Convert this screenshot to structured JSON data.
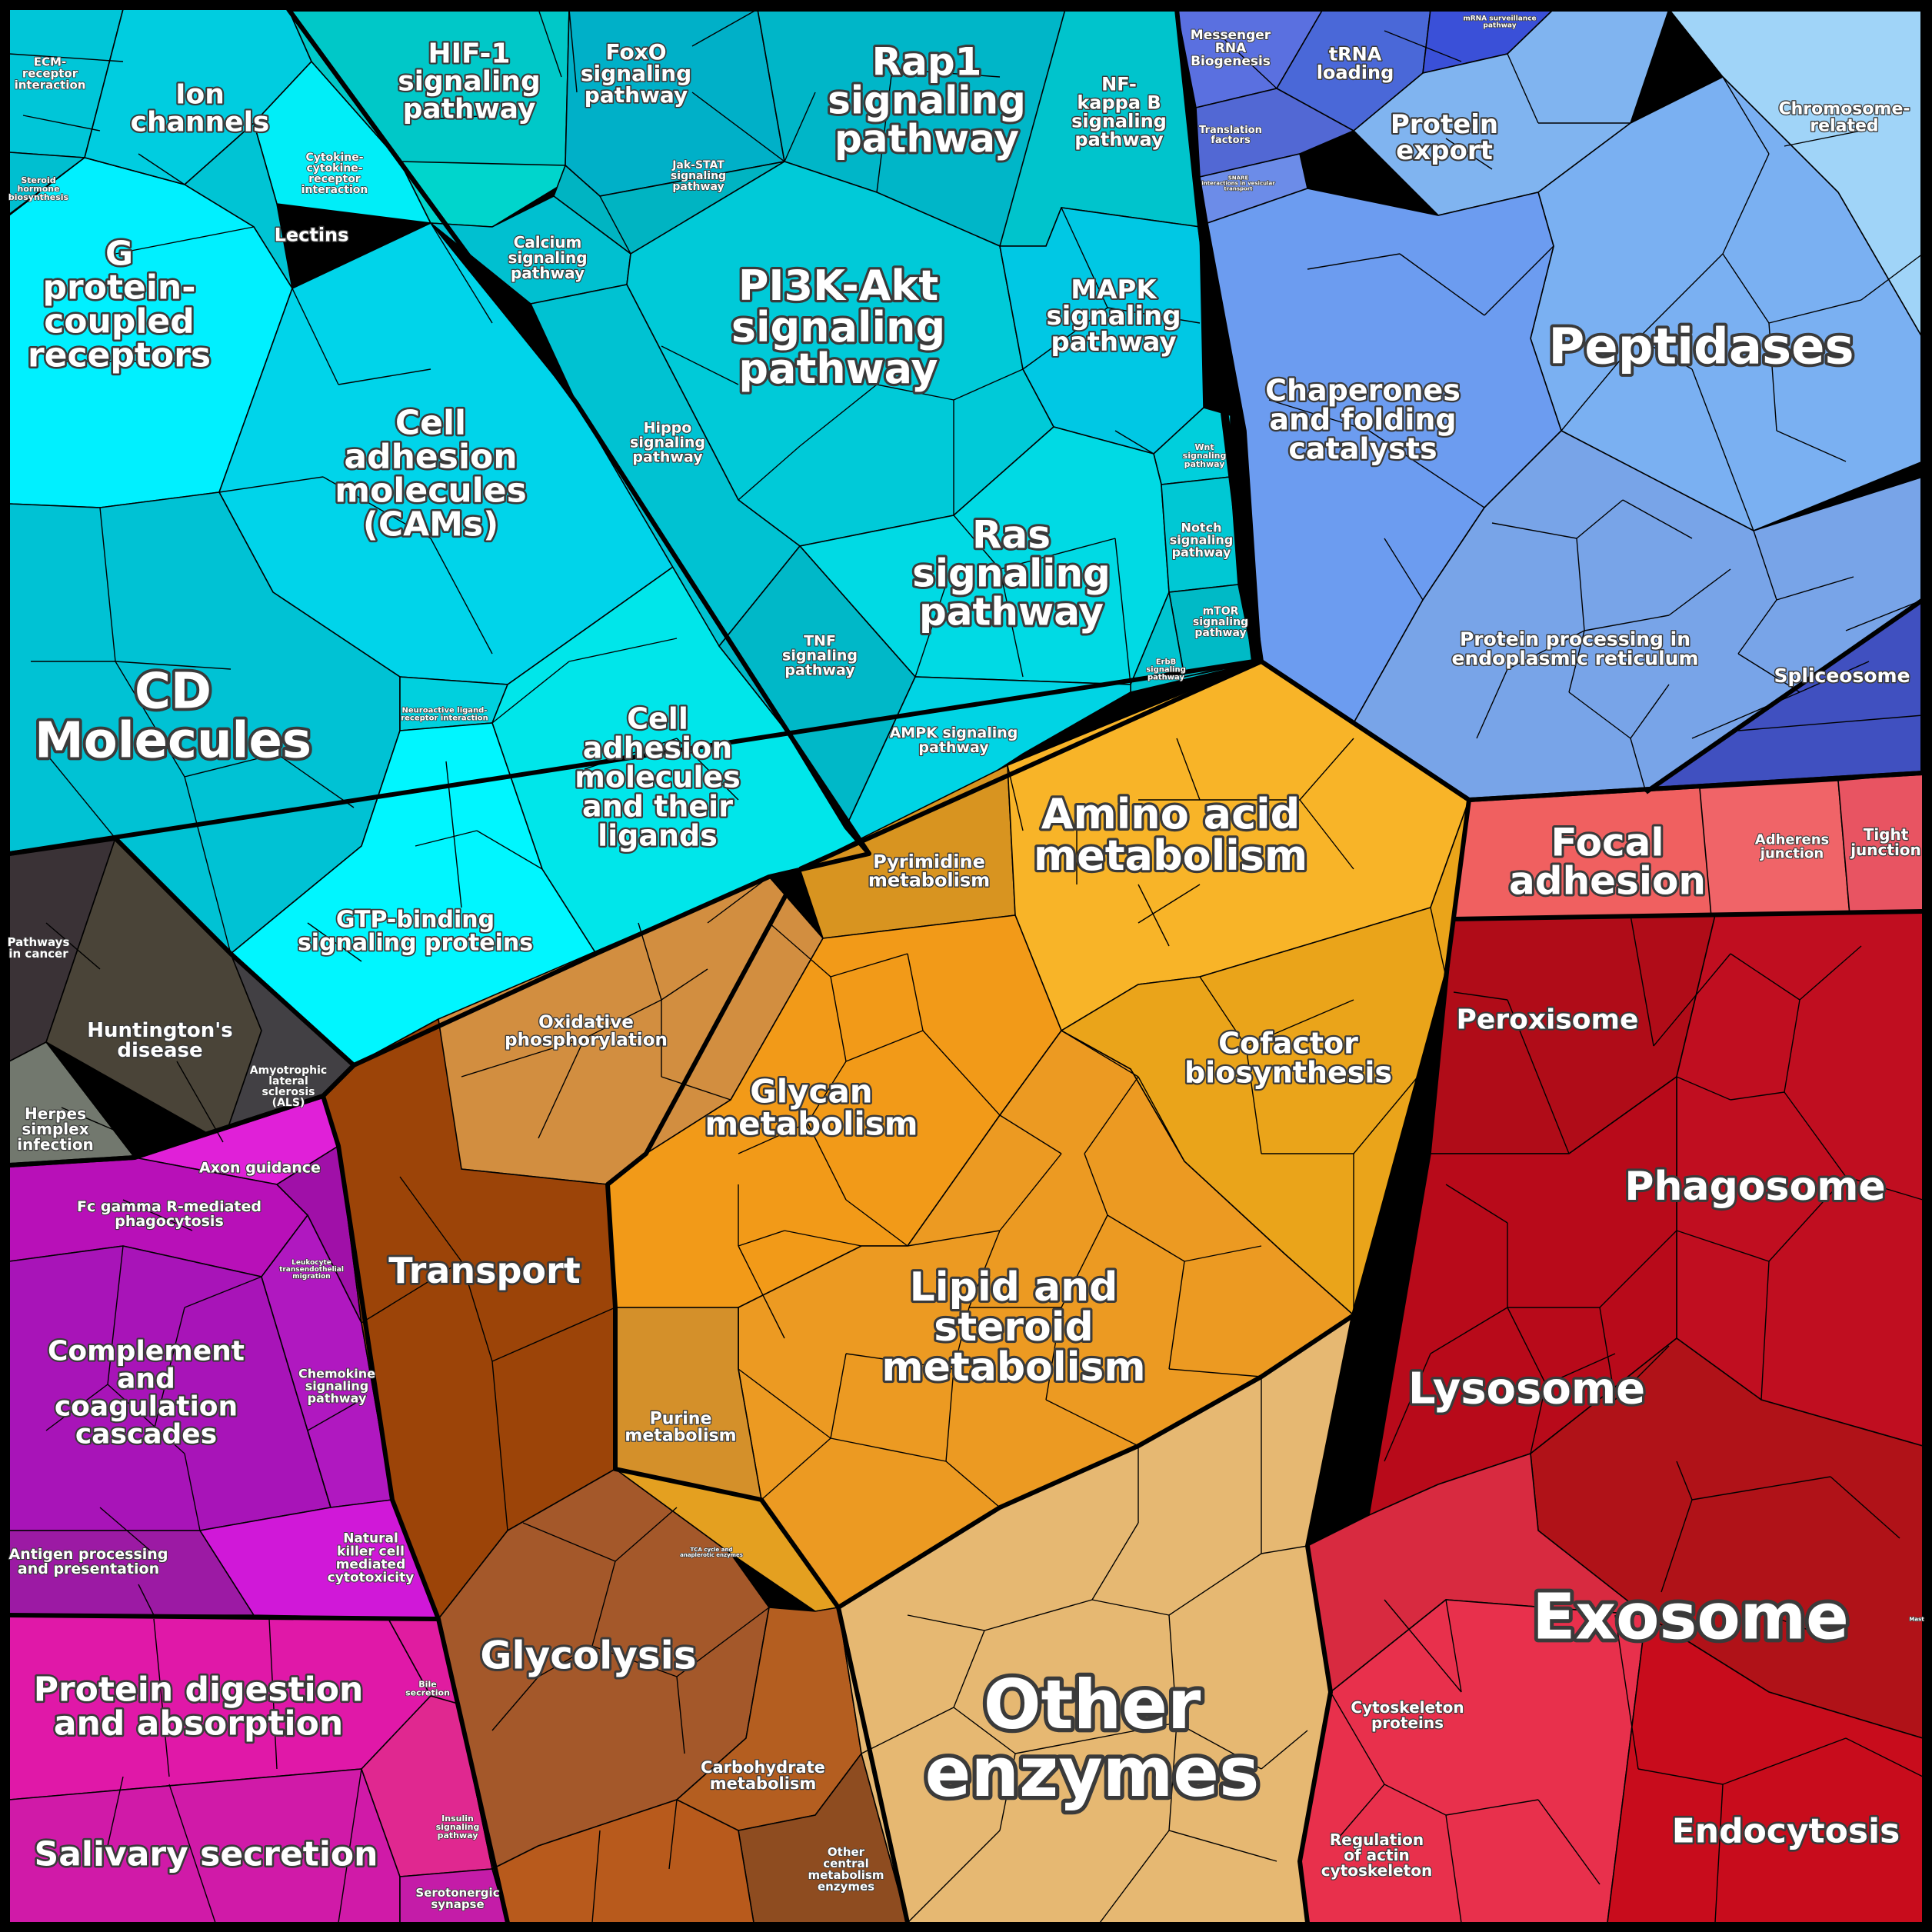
{
  "diagram": {
    "regions": [
      {
        "id": "cyan",
        "name": "cyan-region",
        "color": "#00d8e8"
      },
      {
        "id": "blue",
        "name": "blue-region",
        "color": "#70a8f0"
      },
      {
        "id": "gray",
        "name": "gray-region",
        "color": "#4a4a4a"
      },
      {
        "id": "orange",
        "name": "orange-region",
        "color": "#f0a020"
      },
      {
        "id": "red",
        "name": "red-region",
        "color": "#c01020"
      },
      {
        "id": "magenta",
        "name": "magenta-region",
        "color": "#c010c0"
      },
      {
        "id": "brown",
        "name": "brown-region",
        "color": "#a0582a"
      },
      {
        "id": "tan",
        "name": "tan-region",
        "color": "#e8b870"
      }
    ],
    "labels": {
      "ecm": "ECM-receptor interaction",
      "ion": "Ion channels",
      "steroid_horm": "Steroid hormone biosynthesis",
      "cytokine": "Cytokine-cytokine receptor interaction",
      "lectins": "Lectins",
      "gpcr": "G protein-coupled receptors",
      "cams": "Cell adhesion molecules (CAMs)",
      "cd": "CD Molecules",
      "neuro": "Neuroactive ligand-receptor interaction",
      "cam_lig": "Cell adhesion molecules and their ligands",
      "gtp": "GTP-binding signaling proteins",
      "hif": "HIF-1 signaling pathway",
      "foxo": "FoxO signaling pathway",
      "rap1": "Rap1 signaling pathway",
      "nfkb": "NF-kappa B signaling pathway",
      "jak": "Jak-STAT signaling pathway",
      "calcium": "Calcium signaling pathway",
      "pi3k": "PI3K-Akt signaling pathway",
      "mapk": "MAPK signaling pathway",
      "hippo": "Hippo signaling pathway",
      "wnt": "Wnt signaling pathway",
      "ras": "Ras signaling pathway",
      "notch": "Notch signaling pathway",
      "mtor": "mTOR signaling pathway",
      "erbb": "ErbB signaling pathway",
      "tnf": "TNF signaling pathway",
      "ampk": "AMPK signaling pathway",
      "mrna": "Messenger RNA Biogenesis",
      "trna": "tRNA loading",
      "mrna_surv": "mRNA surveillance pathway",
      "transl": "Translation factors",
      "snare": "SNARE interactions in vesicular transport",
      "prot_export": "Protein export",
      "chromosome": "Chromosome-related",
      "peptidases": "Peptidases",
      "chaperones": "Chaperones and folding catalysts",
      "er": "Protein processing in endoplasmic reticulum",
      "spliceosome": "Spliceosome",
      "pathways_cancer": "Pathways in cancer",
      "huntington": "Huntington's disease",
      "herpes": "Herpes simplex infection",
      "als": "Amyotrophic lateral sclerosis (ALS)",
      "pyrimidine": "Pyrimidine metabolism",
      "amino": "Amino acid metabolism",
      "oxphos": "Oxidative phosphorylation",
      "glycan": "Glycan metabolism",
      "cofactor": "Cofactor biosynthesis",
      "lipid": "Lipid and steroid metabolism",
      "purine": "Purine metabolism",
      "tca": "TCA cycle and anaplerotic enzymes",
      "transport": "Transport",
      "glycolysis": "Glycolysis",
      "carb": "Carbohydrate metabolism",
      "other_central": "Other central metabolism enzymes",
      "other_enz": "Other enzymes",
      "focal": "Focal adhesion",
      "adherens": "Adherens junction",
      "tight": "Tight junction",
      "peroxisome": "Peroxisome",
      "phagosome": "Phagosome",
      "lysosome": "Lysosome",
      "exosome": "Exosome",
      "cytoskeleton": "Cytoskeleton proteins",
      "reg_actin": "Regulation of actin cytoskeleton",
      "endocytosis": "Endocytosis",
      "axon": "Axon guidance",
      "fc_gamma": "Fc gamma R-mediated phagocytosis",
      "leukocyte": "Leukocyte transendothelial migration",
      "complement": "Complement and coagulation cascades",
      "chemokine": "Chemokine signaling pathway",
      "antigen": "Antigen processing and presentation",
      "nk": "Natural killer cell mediated cytotoxicity",
      "protein_dig": "Protein digestion and absorption",
      "bile": "Bile secretion",
      "salivary": "Salivary secretion",
      "insulin": "Insulin signaling pathway",
      "serotonergic": "Serotonergic synapse",
      "mast": "Mast"
    }
  }
}
